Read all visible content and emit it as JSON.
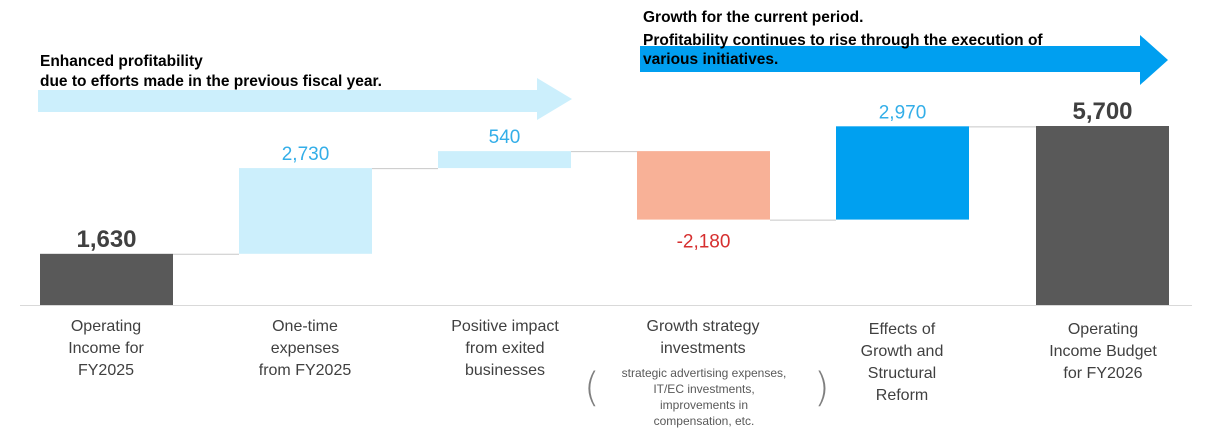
{
  "annotations": {
    "left_title": "Enhanced profitability",
    "left_subtitle": "due to efforts made in the previous fiscal year.",
    "right_title": "Growth for the current period.",
    "right_line1": "Profitability continues to rise through the execution of",
    "right_line2": "various initiatives."
  },
  "colors": {
    "total_bar": "#595959",
    "increase_bar": "#cceffc",
    "decrease_bar": "#f8b197",
    "growth_bar": "#00a0f0",
    "increase_label": "#33aee8",
    "decrease_label": "#d62f2f",
    "total_label": "#404040",
    "left_arrow": "#cceffc",
    "right_arrow": "#009ff0"
  },
  "chart_data": {
    "type": "bar",
    "subtype": "waterfall",
    "categories": [
      "Operating\nIncome for\nFY2025",
      "One-time\nexpenses\nfrom FY2025",
      "Positive impact\nfrom exited\nbusinesses",
      "Growth strategy\ninvestments",
      "Effects of\nGrowth and\nStructural\nReform",
      "Operating\nIncome Budget\nfor FY2026"
    ],
    "category_note": "strategic advertising expenses,\nIT/EC investments,\nimprovements in\ncompensation, etc.",
    "values": [
      1630,
      2730,
      540,
      -2180,
      2970,
      5700
    ],
    "value_labels": [
      "1,630",
      "2,730",
      "540",
      "-2,180",
      "2,970",
      "5,700"
    ],
    "kinds": [
      "total",
      "increase",
      "increase",
      "decrease",
      "growth",
      "total"
    ],
    "ylim": [
      0,
      6300
    ],
    "grid": false,
    "legend": "none",
    "title": "",
    "xlabel": "",
    "ylabel": ""
  }
}
